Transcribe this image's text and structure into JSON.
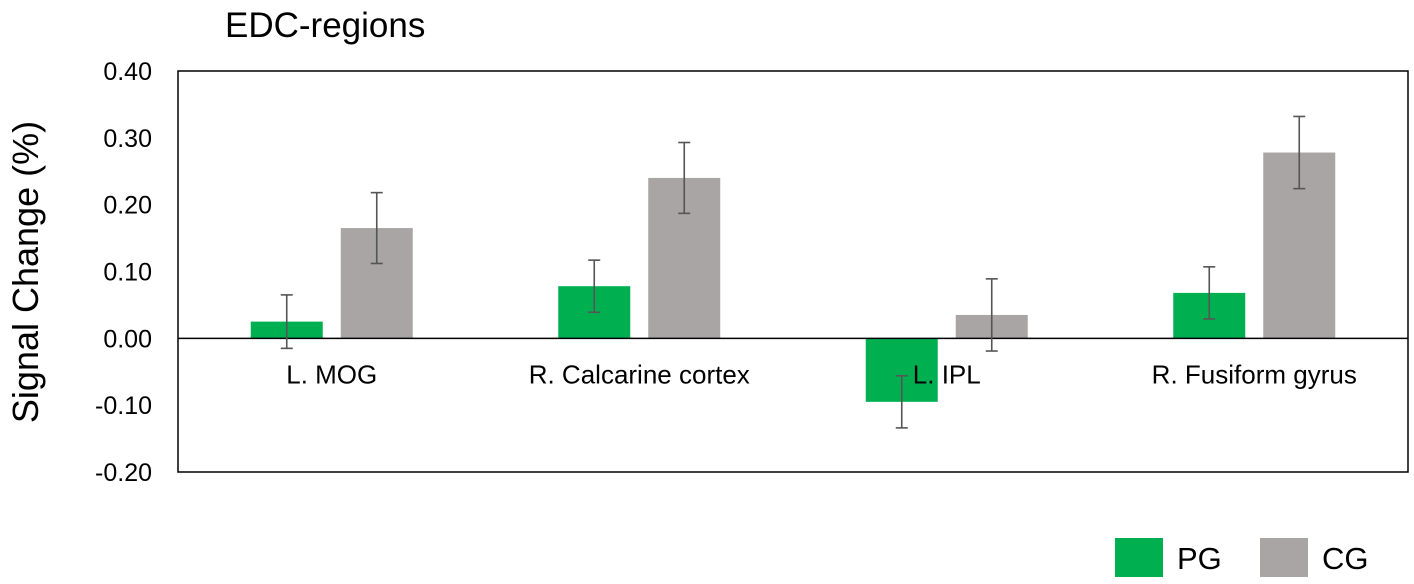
{
  "chart_data": {
    "type": "bar",
    "title": "EDC-regions",
    "xlabel": "",
    "ylabel": "Signal Change (%)",
    "ylim": [
      -0.2,
      0.4
    ],
    "yticks": [
      -0.2,
      -0.1,
      0.0,
      0.1,
      0.2,
      0.3,
      0.4
    ],
    "ytick_labels": [
      "-0.20",
      "-0.10",
      "0.00",
      "0.10",
      "0.20",
      "0.30",
      "0.40"
    ],
    "categories": [
      "L. MOG",
      "R. Calcarine cortex",
      "L. IPL",
      "R. Fusiform gyrus"
    ],
    "series": [
      {
        "name": "PG",
        "color": "#00b050",
        "values": [
          0.025,
          0.078,
          -0.095,
          0.068
        ],
        "errors": [
          0.04,
          0.039,
          0.039,
          0.039
        ]
      },
      {
        "name": "CG",
        "color": "#a9a5a4",
        "values": [
          0.165,
          0.24,
          0.035,
          0.278
        ],
        "errors": [
          0.053,
          0.053,
          0.054,
          0.054
        ]
      }
    ],
    "error_bars": true,
    "grid": false,
    "legend_position": "bottom-right"
  }
}
